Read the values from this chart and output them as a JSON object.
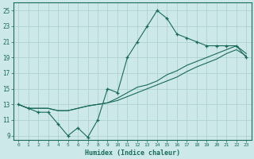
{
  "xlabel": "Humidex (Indice chaleur)",
  "bg_color": "#cce8e8",
  "grid_color": "#aacece",
  "line_color": "#1a6b5a",
  "xlim": [
    -0.5,
    23.5
  ],
  "ylim": [
    8.5,
    26
  ],
  "xticks": [
    0,
    1,
    2,
    3,
    4,
    5,
    6,
    7,
    8,
    9,
    10,
    11,
    12,
    13,
    14,
    15,
    16,
    17,
    18,
    19,
    20,
    21,
    22,
    23
  ],
  "yticks": [
    9,
    11,
    13,
    15,
    17,
    19,
    21,
    23,
    25
  ],
  "hours": [
    0,
    1,
    2,
    3,
    4,
    5,
    6,
    7,
    8,
    9,
    10,
    11,
    12,
    13,
    14,
    15,
    16,
    17,
    18,
    19,
    20,
    21,
    22,
    23
  ],
  "y_main": [
    13,
    12.5,
    12,
    12,
    10.5,
    9,
    10,
    8.8,
    11,
    15,
    14.5,
    19,
    21,
    23,
    25,
    24,
    22,
    21.5,
    21,
    20.5,
    20.5,
    20.5,
    20.5,
    19
  ],
  "y_line1": [
    13,
    12.5,
    12.5,
    12.5,
    12.2,
    12.2,
    12.5,
    12.8,
    13.0,
    13.2,
    13.5,
    14.0,
    14.5,
    15.0,
    15.5,
    16.0,
    16.5,
    17.2,
    17.8,
    18.3,
    18.8,
    19.5,
    20.0,
    19.2
  ],
  "y_line2": [
    13,
    12.5,
    12.5,
    12.5,
    12.2,
    12.2,
    12.5,
    12.8,
    13.0,
    13.2,
    13.8,
    14.5,
    15.2,
    15.5,
    16.0,
    16.8,
    17.3,
    18.0,
    18.5,
    19.0,
    19.5,
    20.0,
    20.5,
    19.5
  ]
}
